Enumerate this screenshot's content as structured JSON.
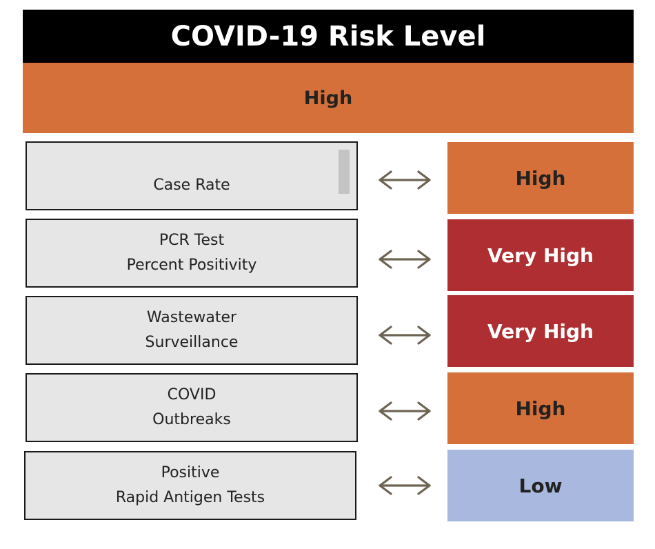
{
  "title": "COVID-19 Risk Level",
  "overall": {
    "label": "High",
    "color": "#d6703a",
    "text_color": "#222222"
  },
  "metrics": [
    {
      "lines": [
        "Case Rate"
      ],
      "level": "High",
      "color": "#d6703a",
      "text_color": "#222222"
    },
    {
      "lines": [
        "PCR Test",
        "Percent Positivity"
      ],
      "level": "Very High",
      "color": "#ae2e31",
      "text_color": "#ffffff"
    },
    {
      "lines": [
        "Wastewater",
        "Surveillance"
      ],
      "level": "Very High",
      "color": "#ae2e31",
      "text_color": "#ffffff"
    },
    {
      "lines": [
        "COVID",
        "Outbreaks"
      ],
      "level": "High",
      "color": "#d6703a",
      "text_color": "#222222"
    },
    {
      "lines": [
        "Positive",
        "Rapid Antigen Tests"
      ],
      "level": "Low",
      "color": "#a8b8de",
      "text_color": "#222222"
    }
  ],
  "icons": {
    "arrow": "double-headed-arrow-icon",
    "arrow_color": "#6e6454"
  }
}
